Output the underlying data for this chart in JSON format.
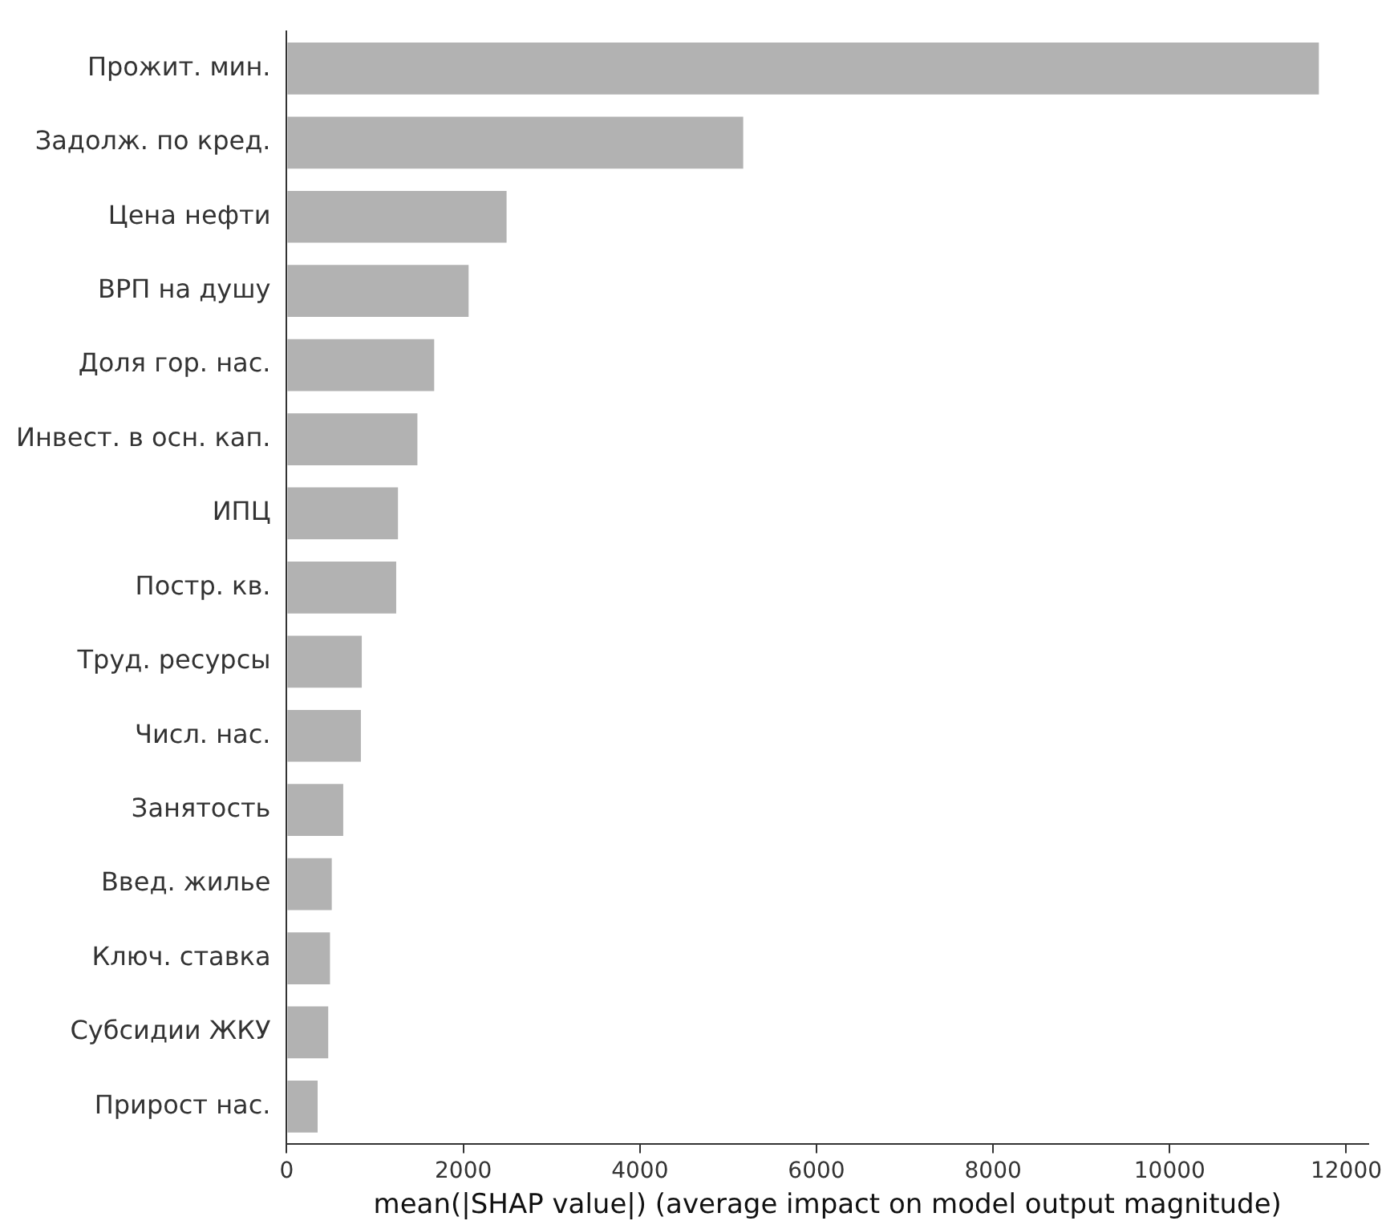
{
  "chart_data": {
    "type": "bar",
    "orientation": "horizontal",
    "xlabel": "mean(|SHAP value|) (average impact on model output magnitude)",
    "categories": [
      "Прожит. мин.",
      "Задолж. по кред.",
      "Цена нефти",
      "ВРП на душу",
      "Доля гор. нас.",
      "Инвест. в осн. кап.",
      "ИПЦ",
      "Постр. кв.",
      "Труд. ресурсы",
      "Числ. нас.",
      "Занятость",
      "Введ. жилье",
      "Ключ. ставка",
      "Субсидии ЖКУ",
      "Прирост нас."
    ],
    "values": [
      11690,
      5170,
      2490,
      2060,
      1670,
      1480,
      1260,
      1240,
      850,
      840,
      640,
      510,
      490,
      470,
      350
    ],
    "color": "#b2b2b2",
    "xlim": [
      0,
      12250
    ],
    "xticks": [
      0,
      2000,
      4000,
      6000,
      8000,
      10000,
      12000
    ],
    "grid": false,
    "legend": false
  }
}
